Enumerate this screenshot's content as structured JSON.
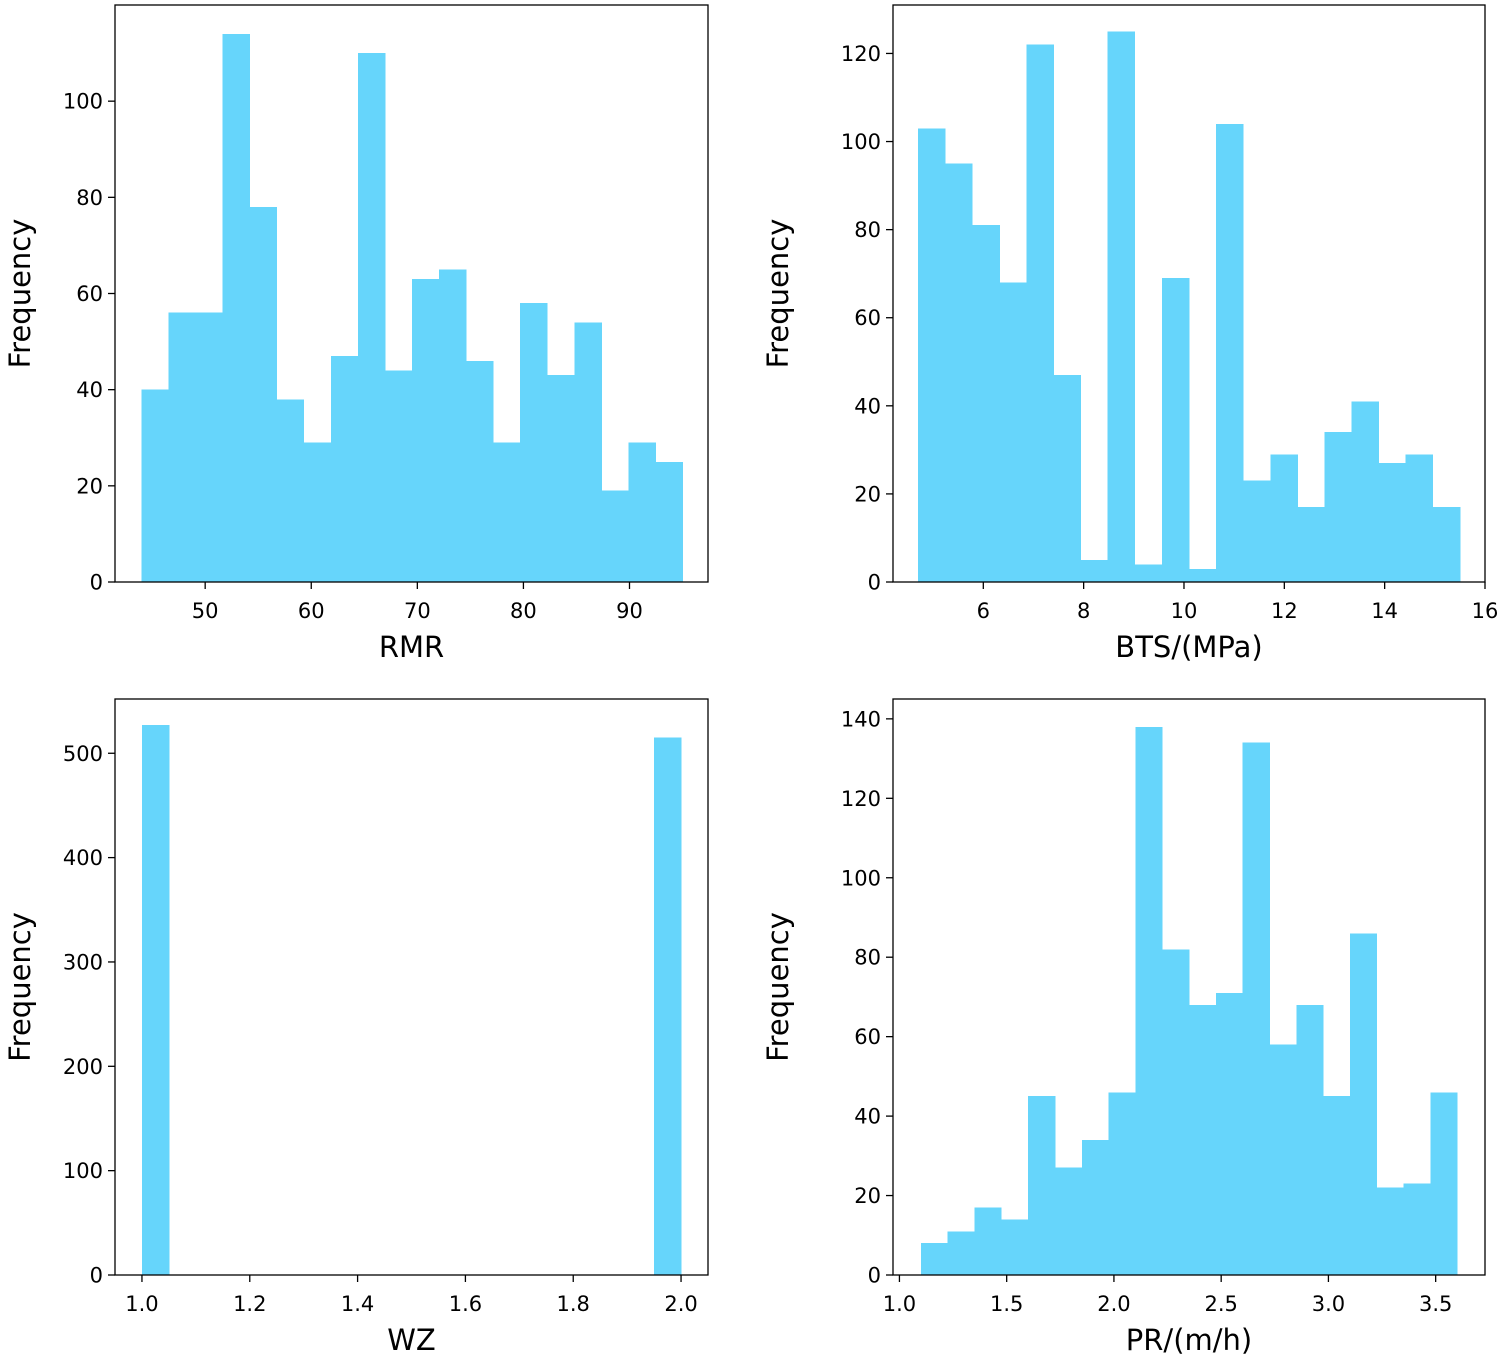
{
  "chart_data": [
    {
      "type": "bar",
      "subtype": "histogram",
      "xlabel": "RMR",
      "ylabel": "Frequency",
      "xlim": [
        41.5,
        97.4
      ],
      "ylim": [
        0,
        120
      ],
      "xticks": [
        50,
        60,
        70,
        80,
        90
      ],
      "yticks": [
        0,
        20,
        40,
        60,
        80,
        100
      ],
      "grid": false,
      "color": "#66d5fb",
      "bin_start": 44,
      "bin_width": 2.55,
      "values": [
        40,
        56,
        56,
        114,
        78,
        38,
        29,
        47,
        110,
        44,
        63,
        65,
        46,
        29,
        58,
        43,
        54,
        19,
        29,
        25
      ]
    },
    {
      "type": "bar",
      "subtype": "histogram",
      "xlabel": "BTS/(MPa)",
      "ylabel": "Frequency",
      "xlim": [
        4.2,
        16.0
      ],
      "ylim": [
        0,
        131
      ],
      "xticks": [
        6,
        8,
        10,
        12,
        14,
        16
      ],
      "yticks": [
        0,
        20,
        40,
        60,
        80,
        100,
        120
      ],
      "grid": false,
      "color": "#66d5fb",
      "bin_start": 4.7,
      "bin_width": 0.54,
      "values": [
        103,
        95,
        81,
        68,
        122,
        47,
        5,
        125,
        4,
        69,
        3,
        104,
        23,
        29,
        17,
        34,
        41,
        27,
        29,
        17
      ]
    },
    {
      "type": "bar",
      "subtype": "histogram",
      "xlabel": "WZ",
      "ylabel": "Frequency",
      "xlim": [
        0.95,
        2.05
      ],
      "ylim": [
        0,
        552
      ],
      "xticks": [
        "1.0",
        "1.2",
        "1.4",
        "1.6",
        "1.8",
        "2.0"
      ],
      "yticks": [
        0,
        100,
        200,
        300,
        400,
        500
      ],
      "grid": false,
      "color": "#66d5fb",
      "bin_start": 1.0,
      "bin_width": 0.05,
      "values": [
        527,
        0,
        0,
        0,
        0,
        0,
        0,
        0,
        0,
        0,
        0,
        0,
        0,
        0,
        0,
        0,
        0,
        0,
        0,
        515
      ]
    },
    {
      "type": "bar",
      "subtype": "histogram",
      "xlabel": "PR/(m/h)",
      "ylabel": "Frequency",
      "xlim": [
        0.97,
        3.73
      ],
      "ylim": [
        0,
        145
      ],
      "xticks": [
        "1.0",
        "1.5",
        "2.0",
        "2.5",
        "3.0",
        "3.5"
      ],
      "yticks": [
        0,
        20,
        40,
        60,
        80,
        100,
        120,
        140
      ],
      "grid": false,
      "color": "#66d5fb",
      "bin_start": 1.1,
      "bin_width": 0.125,
      "values": [
        8,
        11,
        17,
        14,
        45,
        27,
        34,
        46,
        138,
        82,
        68,
        71,
        134,
        58,
        68,
        45,
        86,
        22,
        23,
        46
      ]
    }
  ]
}
